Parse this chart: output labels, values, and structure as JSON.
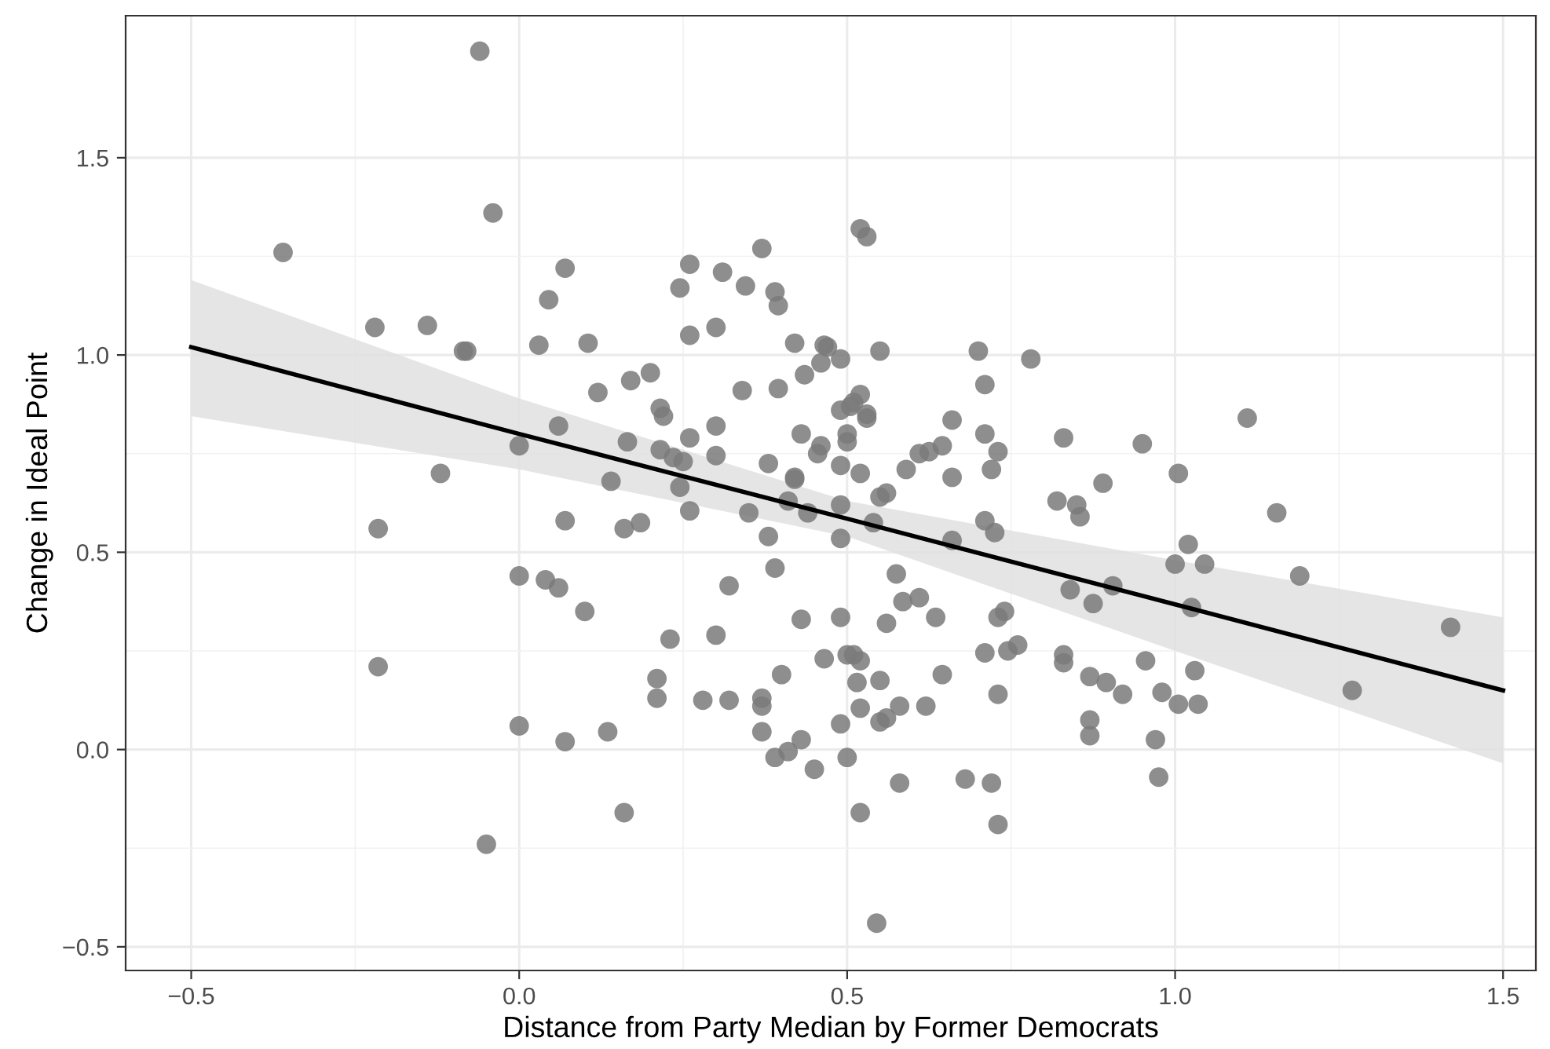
{
  "chart_data": {
    "type": "scatter",
    "xlabel": "Distance from Party Median by Former Democrats",
    "ylabel": "Change in Ideal Point",
    "xlim": [
      -0.6,
      1.55
    ],
    "ylim": [
      -0.56,
      1.86
    ],
    "xticks": [
      {
        "value": -0.5,
        "label": "−0.5"
      },
      {
        "value": 0,
        "label": "0.0"
      },
      {
        "value": 0.5,
        "label": "0.5"
      },
      {
        "value": 1,
        "label": "1.0"
      },
      {
        "value": 1.5,
        "label": "1.5"
      }
    ],
    "yticks": [
      {
        "value": -0.5,
        "label": "−0.5"
      },
      {
        "value": 0,
        "label": "0.0"
      },
      {
        "value": 0.5,
        "label": "0.5"
      },
      {
        "value": 1,
        "label": "1.0"
      },
      {
        "value": 1.5,
        "label": "1.5"
      }
    ],
    "grid": true,
    "legend": false,
    "series": [
      {
        "marker": "circle",
        "color": "#7a7a7a",
        "x": [
          -0.36,
          -0.22,
          -0.14,
          -0.085,
          -0.08,
          -0.06,
          -0.04,
          -0.12,
          -0.215,
          -0.215,
          0.0,
          0.03,
          0.045,
          0.07,
          0.105,
          0.12,
          0.17,
          0.2,
          0.215,
          0.22,
          0.06,
          0.14,
          0.165,
          0.07,
          0.16,
          0.185,
          0.215,
          0.235,
          0.25,
          0.26,
          0.245,
          0.26,
          0.245,
          0.26,
          0.26,
          0.3,
          0.31,
          0.345,
          0.37,
          0.39,
          0.395,
          0.34,
          0.395,
          0.3,
          0.3,
          0.35,
          0.38,
          0.42,
          0.42,
          0.41,
          0.43,
          0.435,
          0.42,
          0.46,
          0.465,
          0.47,
          0.49,
          0.52,
          0.53,
          0.53,
          0.52,
          0.53,
          0.55,
          0.49,
          0.505,
          0.51,
          0.5,
          0.46,
          0.455,
          0.49,
          0.52,
          0.5,
          0.55,
          0.56,
          0.59,
          0.61,
          0.625,
          0.645,
          0.66,
          0.66,
          0.7,
          0.71,
          0.73,
          0.78,
          0.71,
          0.72,
          0.725,
          0.71,
          0.54,
          0.49,
          0.49,
          0.44,
          0.38,
          0.39,
          0.0,
          0.04,
          0.06,
          0.1,
          0.32,
          0.0,
          0.07,
          0.135,
          0.21,
          0.21,
          0.23,
          0.28,
          0.3,
          0.32,
          0.37,
          0.37,
          0.37,
          0.39,
          0.41,
          0.4,
          0.43,
          0.43,
          0.45,
          0.465,
          0.49,
          0.5,
          0.51,
          0.515,
          0.52,
          0.49,
          0.5,
          0.52,
          0.52,
          0.55,
          0.55,
          0.56,
          0.56,
          0.575,
          0.585,
          0.61,
          0.58,
          0.58,
          0.62,
          0.635,
          0.645,
          0.66,
          0.68,
          0.71,
          0.72,
          0.73,
          0.73,
          0.74,
          0.745,
          0.76,
          0.73,
          -0.05,
          0.16,
          0.545,
          0.82,
          0.83,
          0.83,
          0.83,
          0.84,
          0.85,
          0.855,
          0.87,
          0.87,
          0.87,
          0.875,
          0.89,
          0.895,
          0.905,
          0.92,
          0.95,
          0.955,
          0.97,
          0.975,
          0.98,
          1.0,
          1.005,
          1.005,
          1.02,
          1.025,
          1.03,
          1.035,
          1.045,
          1.11,
          1.155,
          1.19,
          1.27,
          1.42
        ],
        "values": [
          1.26,
          1.07,
          1.075,
          1.01,
          1.01,
          1.77,
          1.36,
          0.7,
          0.56,
          0.21,
          0.77,
          1.025,
          1.14,
          1.22,
          1.03,
          0.905,
          0.935,
          0.955,
          0.865,
          0.845,
          0.82,
          0.68,
          0.78,
          0.58,
          0.56,
          0.575,
          0.76,
          0.74,
          0.73,
          0.605,
          0.665,
          0.79,
          1.17,
          1.05,
          1.23,
          1.07,
          1.21,
          1.175,
          1.27,
          1.16,
          1.125,
          0.91,
          0.915,
          0.82,
          0.745,
          0.6,
          0.725,
          0.685,
          0.69,
          0.63,
          0.8,
          0.95,
          1.03,
          0.98,
          1.025,
          1.02,
          0.99,
          0.9,
          0.84,
          0.85,
          1.32,
          1.3,
          1.01,
          0.86,
          0.87,
          0.88,
          0.8,
          0.77,
          0.75,
          0.72,
          0.7,
          0.78,
          0.64,
          0.65,
          0.71,
          0.75,
          0.755,
          0.77,
          0.835,
          0.69,
          1.01,
          0.925,
          0.755,
          0.99,
          0.8,
          0.71,
          0.55,
          0.58,
          0.575,
          0.62,
          0.535,
          0.6,
          0.54,
          0.46,
          0.44,
          0.43,
          0.41,
          0.35,
          0.415,
          0.06,
          0.02,
          0.045,
          0.18,
          0.13,
          0.28,
          0.125,
          0.29,
          0.125,
          0.13,
          0.11,
          0.045,
          -0.02,
          -0.005,
          0.19,
          0.33,
          0.025,
          -0.05,
          0.23,
          0.335,
          0.24,
          0.24,
          0.17,
          0.225,
          0.065,
          -0.02,
          0.105,
          -0.16,
          0.07,
          0.175,
          0.08,
          0.32,
          0.445,
          0.375,
          0.385,
          0.11,
          -0.085,
          0.11,
          0.335,
          0.19,
          0.53,
          -0.075,
          0.245,
          -0.085,
          -0.19,
          0.14,
          0.35,
          0.25,
          0.265,
          0.335,
          -0.24,
          -0.16,
          -0.44,
          0.63,
          0.79,
          0.22,
          0.24,
          0.405,
          0.62,
          0.59,
          0.185,
          0.075,
          0.035,
          0.37,
          0.675,
          0.17,
          0.415,
          0.14,
          0.775,
          0.225,
          0.025,
          -0.07,
          0.145,
          0.47,
          0.7,
          0.115,
          0.52,
          0.36,
          0.2,
          0.115,
          0.47,
          0.84,
          0.6,
          0.44,
          0.15,
          0.31
        ]
      },
      {
        "type": "line",
        "color": "#000000",
        "x": [
          -0.5,
          0.0,
          0.5,
          1.0,
          1.5
        ],
        "values": [
          1.02,
          0.8,
          0.585,
          0.368,
          0.15
        ],
        "lower": [
          0.845,
          0.71,
          0.54,
          0.25,
          -0.035
        ],
        "upper": [
          1.19,
          0.89,
          0.63,
          0.48,
          0.335
        ]
      }
    ]
  }
}
